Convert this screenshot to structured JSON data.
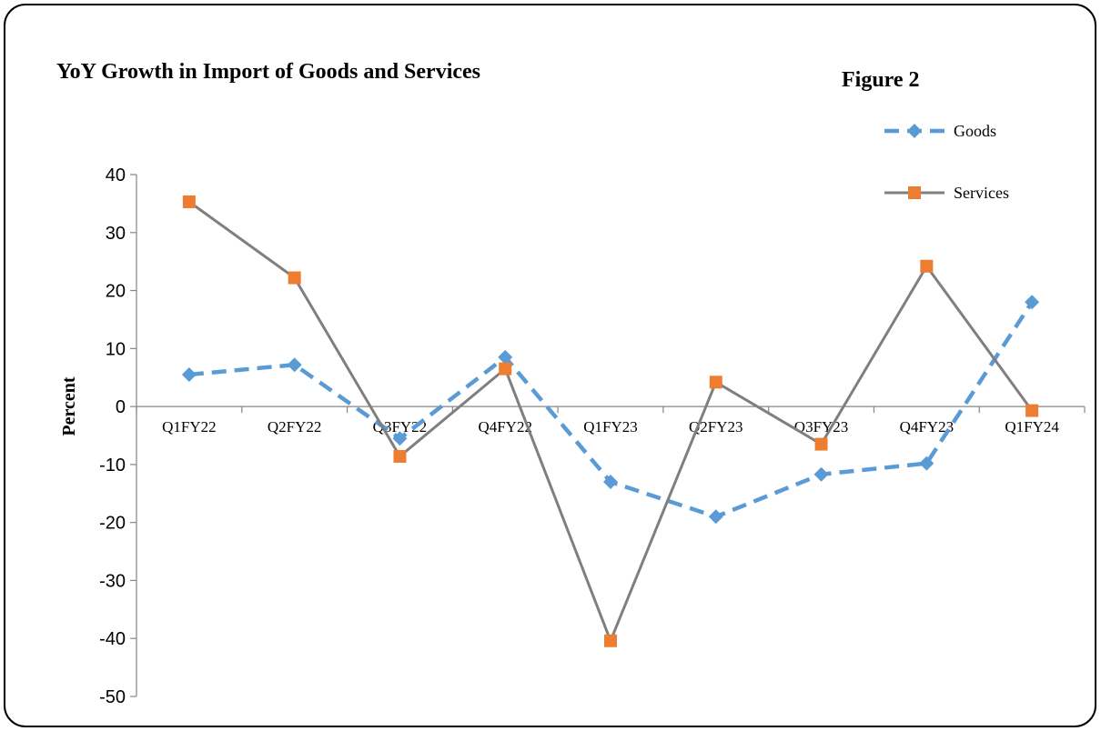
{
  "chart_data": {
    "type": "line",
    "title": "YoY Growth in Import  of Goods and Services",
    "figure_label": "Figure 2",
    "xlabel": "",
    "ylabel": "Percent",
    "ylim": [
      -50,
      40
    ],
    "yticks": [
      40,
      30,
      20,
      10,
      0,
      -10,
      -20,
      -30,
      -40,
      -50
    ],
    "ytick_labels": [
      "40",
      "30",
      "20",
      "10",
      "0",
      "-10",
      "-20",
      "-30",
      "-40",
      "-50"
    ],
    "categories": [
      "Q1FY22",
      "Q2FY22",
      "Q3FY22",
      "Q4FY22",
      "Q1FY23",
      "Q2FY23",
      "Q3FY23",
      "Q4FY23",
      "Q1FY24"
    ],
    "grid": false,
    "legend_position": "top-right",
    "series": [
      {
        "name": "Goods",
        "values": [
          5.5,
          7.2,
          -5.5,
          8.5,
          -13.0,
          -19.0,
          -11.7,
          -9.8,
          18.0
        ],
        "color": "#5b9bd5",
        "line_style": "dashed",
        "marker": "diamond"
      },
      {
        "name": "Services",
        "values": [
          35.3,
          22.2,
          -8.6,
          6.5,
          -40.4,
          4.2,
          -6.5,
          24.2,
          -0.7
        ],
        "color": "#7f7f7f",
        "marker_color": "#ed7d31",
        "line_style": "solid",
        "marker": "square"
      }
    ]
  }
}
